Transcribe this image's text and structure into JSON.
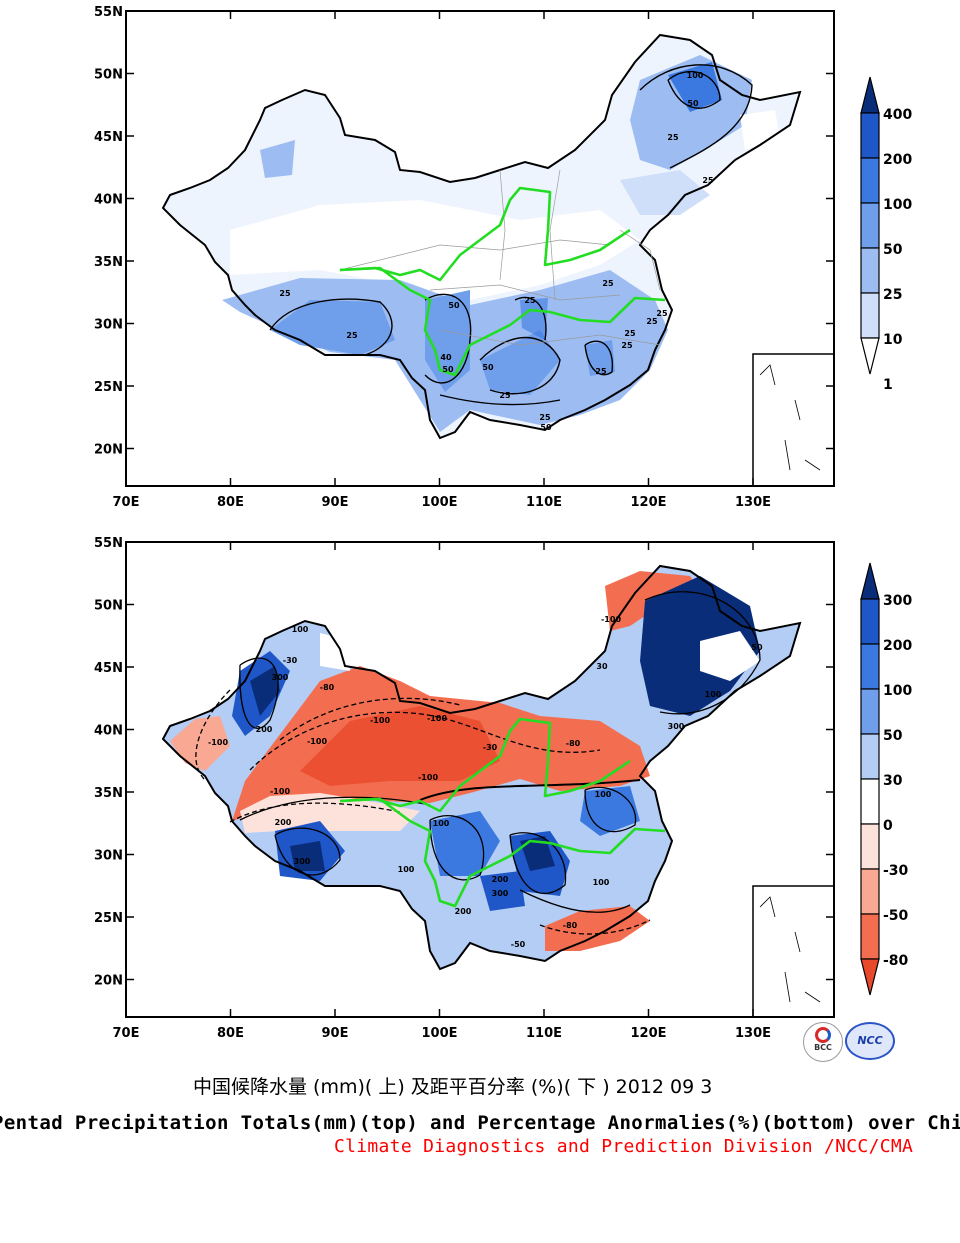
{
  "top_map": {
    "x_ticks": [
      "70E",
      "80E",
      "90E",
      "100E",
      "110E",
      "120E",
      "130E"
    ],
    "y_ticks": [
      "55N",
      "50N",
      "45N",
      "40N",
      "35N",
      "30N",
      "25N",
      "20N"
    ],
    "colorbar": {
      "labels": [
        "400",
        "200",
        "100",
        "50",
        "25",
        "10",
        "1"
      ],
      "colors": [
        "#0a2d7a",
        "#1f57c8",
        "#3b79e0",
        "#6f9eea",
        "#9dbdf2",
        "#cfdffa",
        "#ffffff"
      ]
    },
    "contour_labels": [
      "100",
      "50",
      "25",
      "25",
      "25",
      "25",
      "50",
      "25",
      "50",
      "40",
      "50",
      "25",
      "25",
      "25",
      "25",
      "25",
      "25",
      "25",
      "50",
      "25"
    ]
  },
  "bottom_map": {
    "x_ticks": [
      "70E",
      "80E",
      "90E",
      "100E",
      "110E",
      "120E",
      "130E"
    ],
    "y_ticks": [
      "55N",
      "50N",
      "45N",
      "40N",
      "35N",
      "30N",
      "25N",
      "20N"
    ],
    "colorbar": {
      "labels": [
        "300",
        "200",
        "100",
        "50",
        "30",
        "0",
        "-30",
        "-50",
        "-80"
      ],
      "colors": [
        "#0a2d7a",
        "#1f57c8",
        "#3b79e0",
        "#6f9eea",
        "#b3cdf4",
        "#ffffff",
        "#fde2dc",
        "#f8a893",
        "#f36e50",
        "#e8482b"
      ]
    },
    "contour_labels": [
      "100",
      "-100",
      "-80",
      "-30",
      "200",
      "300",
      "-100",
      "-100",
      "-100",
      "-100",
      "-100",
      "-80",
      "-30",
      "200",
      "100",
      "300",
      "100",
      "100",
      "300",
      "200",
      "200",
      "-80",
      "-50",
      "100",
      "30",
      "50",
      "100",
      "300",
      "-100"
    ]
  },
  "captions": {
    "chinese": "中国候降水量 (mm)( 上) 及距平百分率 (%)( 下 ) 2012 09 3",
    "english": "Pentad Precipitation Totals(mm)(top) and Percentage Anormalies(%)(bottom) over China",
    "credit": "Climate Diagnostics and Prediction Division /NCC/CMA"
  },
  "logos": {
    "left": "BCC",
    "right": "NCC"
  },
  "colors": {
    "river": "#22dd22",
    "caption_red": "#ff0000"
  }
}
